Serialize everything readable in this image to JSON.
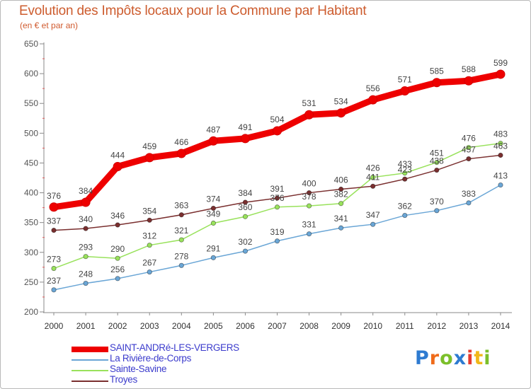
{
  "header": {
    "title": "Evolution des Impôts locaux pour la Commune par Habitant",
    "subtitle": "(en € et par an)"
  },
  "chart_data": {
    "type": "line",
    "title": "Evolution des Impôts locaux pour la Commune par Habitant",
    "subtitle": "(en € et par an)",
    "xlabel": "",
    "ylabel": "",
    "x": [
      "2000",
      "2001",
      "2002",
      "2003",
      "2004",
      "2005",
      "2006",
      "2007",
      "2008",
      "2009",
      "2010",
      "2011",
      "2012",
      "2013",
      "2014"
    ],
    "ylim": [
      200,
      650
    ],
    "yticks": [
      200,
      250,
      300,
      350,
      400,
      450,
      500,
      550,
      600,
      650
    ],
    "grid": false,
    "legend_position": "bottom-left",
    "series": [
      {
        "name": "SAINT-ANDRé-LES-VERGERS",
        "color": "#ee0000",
        "highlight": true,
        "values": [
          376,
          384,
          444,
          459,
          466,
          487,
          491,
          504,
          531,
          534,
          556,
          571,
          585,
          588,
          599
        ]
      },
      {
        "name": "La Rivière-de-Corps",
        "color": "#6aa6d6",
        "highlight": false,
        "values": [
          237,
          248,
          256,
          267,
          278,
          291,
          302,
          319,
          331,
          341,
          347,
          362,
          370,
          383,
          413
        ]
      },
      {
        "name": "Sainte-Savine",
        "color": "#99e25c",
        "highlight": false,
        "values": [
          273,
          293,
          290,
          312,
          321,
          349,
          360,
          376,
          378,
          382,
          426,
          433,
          451,
          476,
          483
        ]
      },
      {
        "name": "Troyes",
        "color": "#7a2f2f",
        "highlight": false,
        "values": [
          337,
          340,
          346,
          354,
          363,
          374,
          384,
          391,
          400,
          406,
          411,
          423,
          438,
          457,
          463
        ]
      }
    ]
  },
  "legend": {
    "items": [
      {
        "label": "SAINT-ANDRé-LES-VERGERS",
        "color": "#ee0000",
        "text_color": "#3b3bcc"
      },
      {
        "label": "La Rivière-de-Corps",
        "color": "#6aa6d6",
        "text_color": "#3b3bcc"
      },
      {
        "label": "Sainte-Savine",
        "color": "#99e25c",
        "text_color": "#3b3bcc"
      },
      {
        "label": "Troyes",
        "color": "#7a2f2f",
        "text_color": "#3b3bcc"
      }
    ]
  },
  "brand": {
    "letters": [
      "P",
      "r",
      "o",
      "x",
      "i",
      "t",
      "i"
    ],
    "colors": [
      "#2e7bd1",
      "#ef6b1a",
      "#7bbf2a",
      "#2e7bd1",
      "#e63a2e",
      "#f1b81a",
      "#7bbf2a"
    ]
  }
}
